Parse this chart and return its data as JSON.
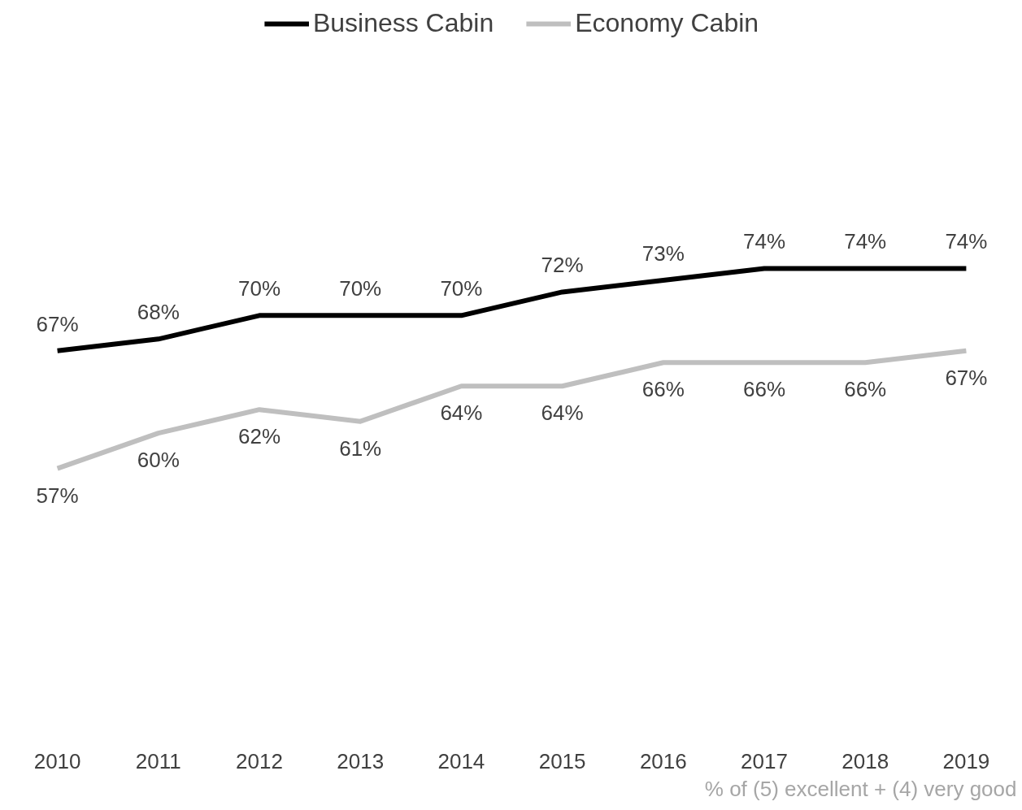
{
  "chart_data": {
    "type": "line",
    "categories": [
      "2010",
      "2011",
      "2012",
      "2013",
      "2014",
      "2015",
      "2016",
      "2017",
      "2018",
      "2019"
    ],
    "series": [
      {
        "name": "Business Cabin",
        "color": "#000000",
        "values": [
          67,
          68,
          70,
          70,
          70,
          72,
          73,
          74,
          74,
          74
        ],
        "value_labels": [
          "67%",
          "68%",
          "70%",
          "70%",
          "70%",
          "72%",
          "73%",
          "74%",
          "74%",
          "74%"
        ]
      },
      {
        "name": "Economy Cabin",
        "color": "#bfbfbf",
        "values": [
          57,
          60,
          62,
          61,
          64,
          64,
          66,
          66,
          66,
          67
        ],
        "value_labels": [
          "57%",
          "60%",
          "62%",
          "61%",
          "64%",
          "64%",
          "66%",
          "66%",
          "66%",
          "67%"
        ]
      }
    ],
    "tick_labels": "x",
    "legend": "top",
    "line_style": "solid",
    "marker": "none",
    "annotations": [
      "% of (5) excellent + (4) very good"
    ]
  }
}
